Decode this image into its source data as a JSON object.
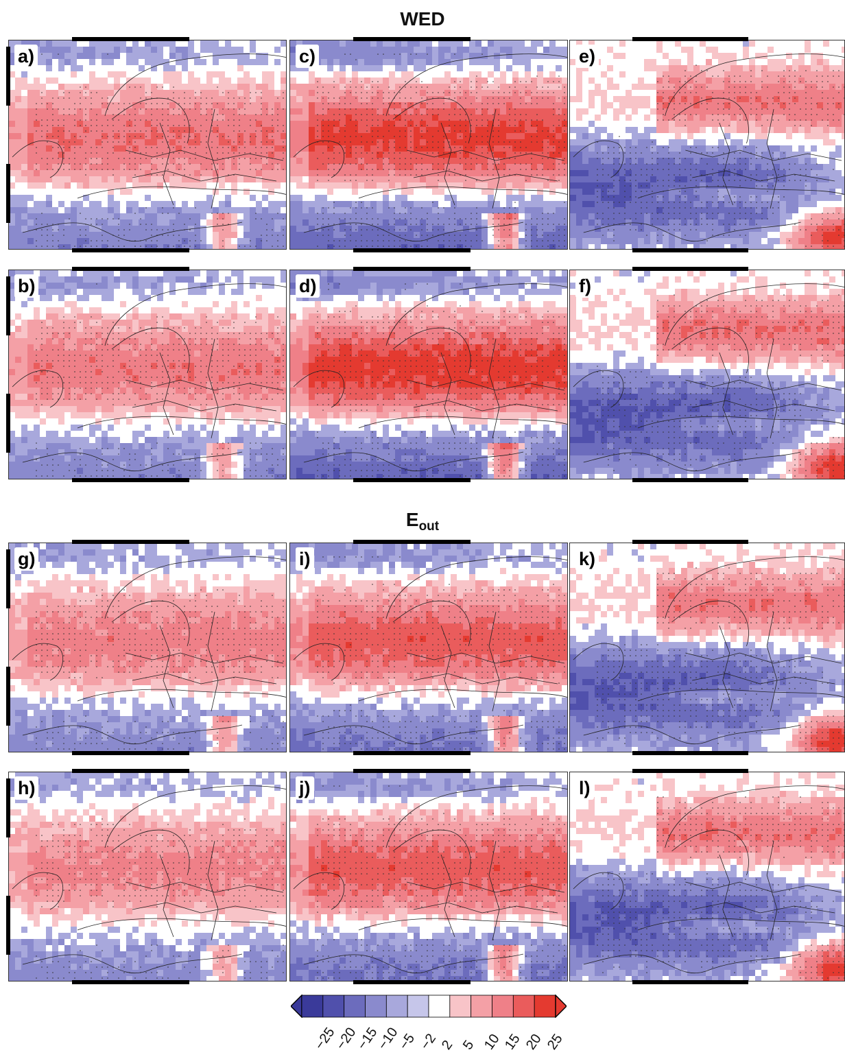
{
  "titles": {
    "top": "WED",
    "bottom_main": "E",
    "bottom_sub": "out"
  },
  "panels": [
    {
      "id": "a",
      "label": "a)",
      "pattern": "north",
      "intensity": 0.8
    },
    {
      "id": "b",
      "label": "b)",
      "pattern": "north",
      "intensity": 0.75
    },
    {
      "id": "c",
      "label": "c)",
      "pattern": "north",
      "intensity": 1.2
    },
    {
      "id": "d",
      "label": "d)",
      "pattern": "north",
      "intensity": 1.25
    },
    {
      "id": "e",
      "label": "e)",
      "pattern": "south",
      "intensity": 1.0
    },
    {
      "id": "f",
      "label": "f)",
      "pattern": "south",
      "intensity": 1.05
    },
    {
      "id": "g",
      "label": "g)",
      "pattern": "north",
      "intensity": 0.7
    },
    {
      "id": "h",
      "label": "h)",
      "pattern": "north",
      "intensity": 0.65
    },
    {
      "id": "i",
      "label": "i)",
      "pattern": "north",
      "intensity": 1.0
    },
    {
      "id": "j",
      "label": "j)",
      "pattern": "north",
      "intensity": 1.0
    },
    {
      "id": "k",
      "label": "k)",
      "pattern": "south",
      "intensity": 1.0
    },
    {
      "id": "l",
      "label": "l)",
      "pattern": "south",
      "intensity": 1.0
    }
  ],
  "colorbar": {
    "labels": [
      "−25",
      "−20",
      "−15",
      "−10",
      "−5",
      "−2",
      "2",
      "5",
      "10",
      "15",
      "20",
      "25"
    ],
    "colors": [
      "#3a3a9a",
      "#5050ac",
      "#6c6cbd",
      "#8a8acd",
      "#a8a8dc",
      "#c6c6ea",
      "#ffffff",
      "#f8c4c8",
      "#f4a0a6",
      "#ef8088",
      "#ea5c5c",
      "#e43a30"
    ]
  }
}
